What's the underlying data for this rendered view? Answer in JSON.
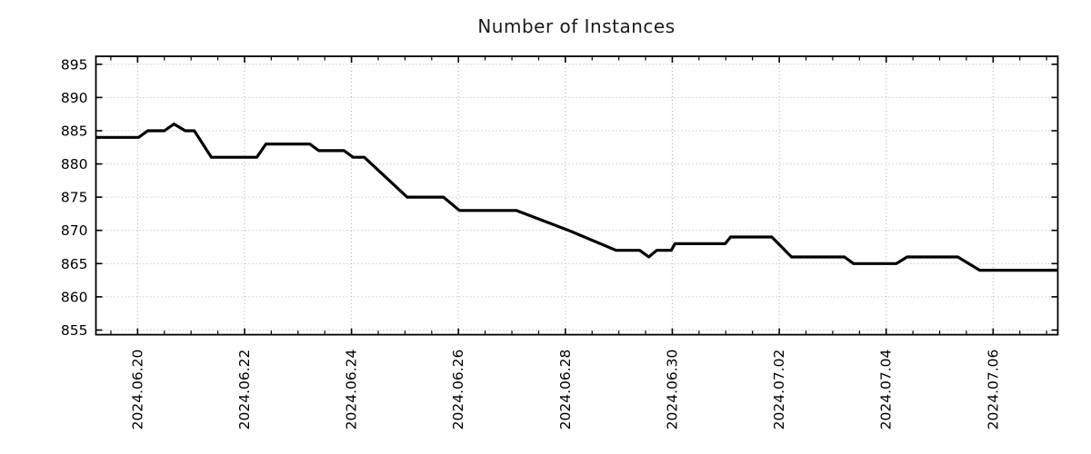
{
  "chart_data": {
    "type": "line",
    "title": "Number of Instances",
    "grid": {
      "show": true,
      "color": "#b0b0b0",
      "style": "dotted"
    },
    "line": {
      "name": "instances",
      "color": "#000000",
      "width": 3.2
    },
    "x_axis": {
      "unit": "days relative to 2024.06.20",
      "range": [
        -0.78,
        17.21
      ],
      "major_ticks": [
        {
          "t": 0,
          "label": "2024.06.20"
        },
        {
          "t": 2,
          "label": "2024.06.22"
        },
        {
          "t": 4,
          "label": "2024.06.24"
        },
        {
          "t": 6,
          "label": "2024.06.26"
        },
        {
          "t": 8,
          "label": "2024.06.28"
        },
        {
          "t": 10,
          "label": "2024.06.30"
        },
        {
          "t": 12,
          "label": "2024.07.02"
        },
        {
          "t": 14,
          "label": "2024.07.04"
        },
        {
          "t": 16,
          "label": "2024.07.06"
        }
      ],
      "minor_tick_interval": 0.5
    },
    "y_axis": {
      "range": [
        854.3,
        896.2
      ],
      "major_ticks": [
        855,
        860,
        865,
        870,
        875,
        880,
        885,
        890,
        895
      ]
    },
    "points": [
      [
        -0.78,
        884
      ],
      [
        0.02,
        884
      ],
      [
        0.19,
        885
      ],
      [
        0.5,
        885
      ],
      [
        0.68,
        886
      ],
      [
        0.89,
        885
      ],
      [
        1.06,
        885
      ],
      [
        1.38,
        881
      ],
      [
        2.23,
        881
      ],
      [
        2.4,
        883
      ],
      [
        3.22,
        883
      ],
      [
        3.39,
        882
      ],
      [
        3.86,
        882
      ],
      [
        4.03,
        881
      ],
      [
        4.24,
        881
      ],
      [
        5.04,
        875
      ],
      [
        5.72,
        875
      ],
      [
        6.02,
        873
      ],
      [
        7.08,
        873
      ],
      [
        8.06,
        870
      ],
      [
        8.95,
        867
      ],
      [
        9.39,
        867
      ],
      [
        9.56,
        866
      ],
      [
        9.71,
        867
      ],
      [
        9.98,
        867
      ],
      [
        10.05,
        868
      ],
      [
        10.99,
        868
      ],
      [
        11.09,
        869
      ],
      [
        11.86,
        869
      ],
      [
        12.23,
        866
      ],
      [
        13.22,
        866
      ],
      [
        13.39,
        865
      ],
      [
        14.19,
        865
      ],
      [
        14.39,
        866
      ],
      [
        15.34,
        866
      ],
      [
        15.75,
        864
      ],
      [
        17.21,
        864
      ]
    ]
  }
}
